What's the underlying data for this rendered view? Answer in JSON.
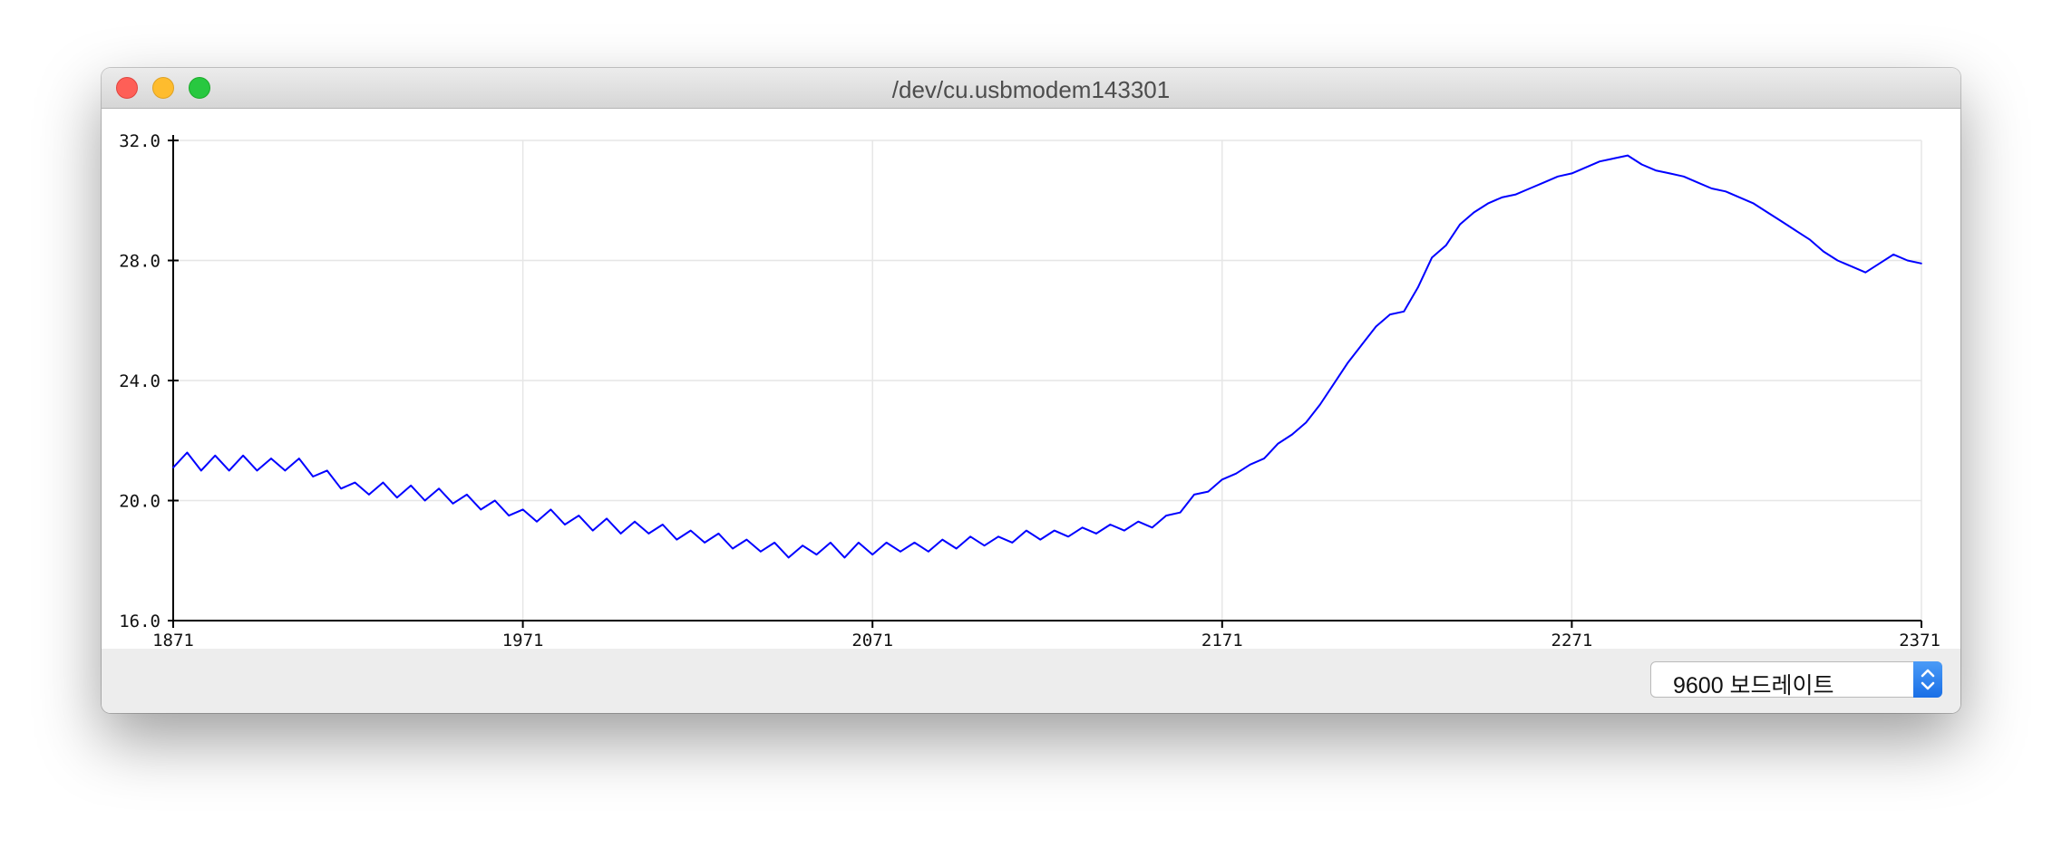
{
  "window": {
    "title": "/dev/cu.usbmodem143301"
  },
  "baud": {
    "selected": "9600 보드레이트"
  },
  "icons": {
    "close": "close-light-icon",
    "minimize": "minimize-light-icon",
    "zoom": "zoom-light-icon",
    "dropdown": "updown-chevron-icon"
  },
  "colors": {
    "series": "#0000ff",
    "grid": "#e6e6e6",
    "axis": "#000000",
    "dropdown_accent": "#1a6fe6"
  },
  "chart_data": {
    "type": "line",
    "title": "",
    "xlabel": "",
    "ylabel": "",
    "xlim": [
      1871,
      2371
    ],
    "ylim": [
      16.0,
      32.0
    ],
    "x_ticks": [
      "1871",
      "1971",
      "2071",
      "2171",
      "2271",
      "2371"
    ],
    "y_ticks": [
      "32.0",
      "28.0",
      "24.0",
      "20.0",
      "16.0"
    ],
    "grid": true,
    "series": [
      {
        "x": [
          1871,
          1875,
          1879,
          1883,
          1887,
          1891,
          1895,
          1899,
          1903,
          1907,
          1911,
          1915,
          1919,
          1923,
          1927,
          1931,
          1935,
          1939,
          1943,
          1947,
          1951,
          1955,
          1959,
          1963,
          1967,
          1971,
          1975,
          1979,
          1983,
          1987,
          1991,
          1995,
          1999,
          2003,
          2007,
          2011,
          2015,
          2019,
          2023,
          2027,
          2031,
          2035,
          2039,
          2043,
          2047,
          2051,
          2055,
          2059,
          2063,
          2067,
          2071,
          2075,
          2079,
          2083,
          2087,
          2091,
          2095,
          2099,
          2103,
          2107,
          2111,
          2115,
          2119,
          2123,
          2127,
          2131,
          2135,
          2139,
          2143,
          2147,
          2151,
          2155,
          2159,
          2163,
          2167,
          2171,
          2175,
          2179,
          2183,
          2187,
          2191,
          2195,
          2199,
          2203,
          2207,
          2211,
          2215,
          2219,
          2223,
          2227,
          2231,
          2235,
          2239,
          2243,
          2247,
          2251,
          2255,
          2259,
          2263,
          2267,
          2271,
          2275,
          2279,
          2283,
          2287,
          2291,
          2295,
          2299,
          2303,
          2307,
          2311,
          2315,
          2319,
          2323,
          2327,
          2331,
          2335,
          2339,
          2343,
          2347,
          2351,
          2355,
          2359,
          2363,
          2367,
          2371
        ],
        "values": [
          21.1,
          21.6,
          21.0,
          21.5,
          21.0,
          21.5,
          21.0,
          21.4,
          21.0,
          21.4,
          20.8,
          21.0,
          20.4,
          20.6,
          20.2,
          20.6,
          20.1,
          20.5,
          20.0,
          20.4,
          19.9,
          20.2,
          19.7,
          20.0,
          19.5,
          19.7,
          19.3,
          19.7,
          19.2,
          19.5,
          19.0,
          19.4,
          18.9,
          19.3,
          18.9,
          19.2,
          18.7,
          19.0,
          18.6,
          18.9,
          18.4,
          18.7,
          18.3,
          18.6,
          18.1,
          18.5,
          18.2,
          18.6,
          18.1,
          18.6,
          18.2,
          18.6,
          18.3,
          18.6,
          18.3,
          18.7,
          18.4,
          18.8,
          18.5,
          18.8,
          18.6,
          19.0,
          18.7,
          19.0,
          18.8,
          19.1,
          18.9,
          19.2,
          19.0,
          19.3,
          19.1,
          19.5,
          19.6,
          20.2,
          20.3,
          20.7,
          20.9,
          21.2,
          21.4,
          21.9,
          22.2,
          22.6,
          23.2,
          23.9,
          24.6,
          25.2,
          25.8,
          26.2,
          26.3,
          27.1,
          28.1,
          28.5,
          29.2,
          29.6,
          29.9,
          30.1,
          30.2,
          30.4,
          30.6,
          30.8,
          30.9,
          31.1,
          31.3,
          31.4,
          31.5,
          31.2,
          31.0,
          30.9,
          30.8,
          30.6,
          30.4,
          30.3,
          30.1,
          29.9,
          29.6,
          29.3,
          29.0,
          28.7,
          28.3,
          28.0,
          27.8,
          27.6,
          27.9,
          28.2,
          28.0,
          27.9
        ]
      }
    ]
  }
}
